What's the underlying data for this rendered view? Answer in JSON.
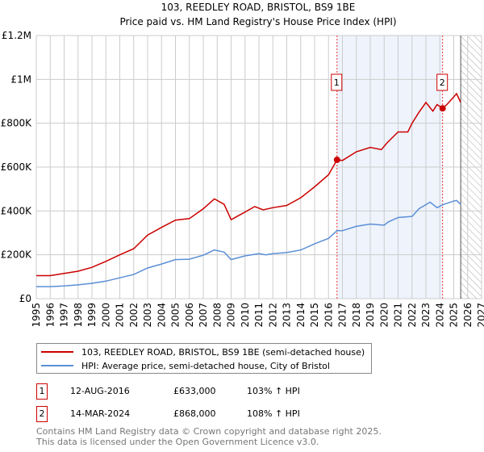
{
  "chart_data": {
    "type": "line",
    "title": "103, REEDLEY ROAD, BRISTOL, BS9 1BE",
    "subtitle": "Price paid vs. HM Land Registry's House Price Index (HPI)",
    "xlim": [
      1995,
      2027
    ],
    "ylim": [
      0,
      1200000
    ],
    "yticks": [
      {
        "v": 0,
        "label": "£0"
      },
      {
        "v": 200000,
        "label": "£200K"
      },
      {
        "v": 400000,
        "label": "£400K"
      },
      {
        "v": 600000,
        "label": "£600K"
      },
      {
        "v": 800000,
        "label": "£800K"
      },
      {
        "v": 1000000,
        "label": "£1M"
      },
      {
        "v": 1200000,
        "label": "£1.2M"
      }
    ],
    "xticks": [
      "1995",
      "1996",
      "1997",
      "1998",
      "1999",
      "2000",
      "2001",
      "2002",
      "2003",
      "2004",
      "2005",
      "2006",
      "2007",
      "2008",
      "2009",
      "2010",
      "2011",
      "2012",
      "2013",
      "2014",
      "2015",
      "2016",
      "2017",
      "2018",
      "2019",
      "2020",
      "2021",
      "2022",
      "2023",
      "2024",
      "2025",
      "2026",
      "2027"
    ],
    "grid": true,
    "shaded_range": [
      2016.61,
      2024.2
    ],
    "forecast_hatch_from": 2025.5,
    "series": [
      {
        "name": "103, REEDLEY ROAD, BRISTOL, BS9 1BE (semi-detached house)",
        "color": "#cc0000",
        "x": [
          1995,
          1996,
          1997,
          1998,
          1999,
          2000,
          2001,
          2002,
          2003,
          2004,
          2005,
          2006,
          2007,
          2007.8,
          2008.5,
          2009,
          2010,
          2010.7,
          2011.3,
          2012,
          2013,
          2014,
          2015,
          2016,
          2016.61,
          2017,
          2018,
          2019,
          2019.8,
          2020.2,
          2021,
          2021.7,
          2022,
          2022.5,
          2023,
          2023.5,
          2023.8,
          2024.2,
          2024.5,
          2025,
          2025.2,
          2025.5
        ],
        "y": [
          105000,
          105000,
          115000,
          125000,
          143000,
          170000,
          200000,
          228000,
          290000,
          325000,
          358000,
          365000,
          410000,
          455000,
          430000,
          360000,
          395000,
          420000,
          405000,
          415000,
          425000,
          460000,
          510000,
          565000,
          633000,
          630000,
          670000,
          690000,
          680000,
          710000,
          760000,
          760000,
          800000,
          850000,
          895000,
          855000,
          885000,
          868000,
          885000,
          920000,
          935000,
          895000
        ]
      },
      {
        "name": "HPI: Average price, semi-detached house, City of Bristol",
        "color": "#5b8fd6",
        "x": [
          1995,
          1996,
          1997,
          1998,
          1999,
          2000,
          2001,
          2002,
          2003,
          2004,
          2005,
          2006,
          2007,
          2007.8,
          2008.5,
          2009,
          2010,
          2011,
          2011.5,
          2012,
          2013,
          2014,
          2015,
          2016,
          2016.61,
          2017,
          2018,
          2019,
          2020,
          2020.3,
          2021,
          2022,
          2022.5,
          2023.3,
          2023.8,
          2024.2,
          2025,
          2025.2,
          2025.5
        ],
        "y": [
          55000,
          55000,
          58000,
          63000,
          70000,
          80000,
          95000,
          110000,
          140000,
          158000,
          178000,
          180000,
          198000,
          222000,
          212000,
          178000,
          195000,
          205000,
          200000,
          205000,
          210000,
          222000,
          250000,
          275000,
          310000,
          310000,
          330000,
          340000,
          335000,
          350000,
          370000,
          375000,
          410000,
          440000,
          415000,
          428000,
          445000,
          448000,
          430000
        ]
      }
    ],
    "annotations": [
      {
        "label": "1",
        "x": 2016.61,
        "y": 633000
      },
      {
        "label": "2",
        "x": 2024.2,
        "y": 868000
      }
    ]
  },
  "legend": [
    {
      "label": "103, REEDLEY ROAD, BRISTOL, BS9 1BE (semi-detached house)",
      "color": "#cc0000"
    },
    {
      "label": "HPI: Average price, semi-detached house, City of Bristol",
      "color": "#5b8fd6"
    }
  ],
  "transactions": [
    {
      "num": "1",
      "date": "12-AUG-2016",
      "price": "£633,000",
      "hpi": "103% ↑ HPI"
    },
    {
      "num": "2",
      "date": "14-MAR-2024",
      "price": "£868,000",
      "hpi": "108% ↑ HPI"
    }
  ],
  "footer": {
    "line1": "Contains HM Land Registry data © Crown copyright and database right 2025.",
    "line2": "This data is licensed under the Open Government Licence v3.0."
  }
}
